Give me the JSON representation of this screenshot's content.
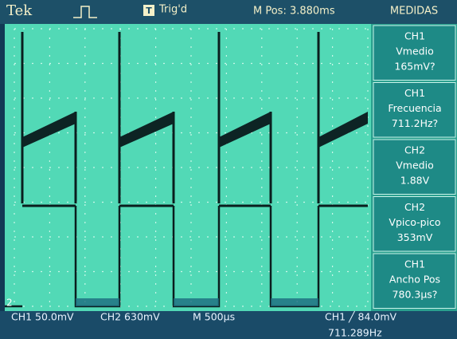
{
  "header": {
    "brand": "Tek",
    "trigger_icon": "T",
    "trigger_status": "Trig'd",
    "position": "M Pos: 3.880ms",
    "menu_title": "MEDIDAS"
  },
  "measurements": [
    {
      "source": "CH1",
      "name": "Vmedio",
      "value": "165mV?"
    },
    {
      "source": "CH1",
      "name": "Frecuencia",
      "value": "711.2Hz?"
    },
    {
      "source": "CH2",
      "name": "Vmedio",
      "value": "1.88V"
    },
    {
      "source": "CH2",
      "name": "Vpico-pico",
      "value": "353mV"
    },
    {
      "source": "CH1",
      "name": "Ancho Pos",
      "value": "780.3µs?"
    }
  ],
  "markers": {
    "channel2": "2"
  },
  "footer": {
    "ch1_scale": "CH1  50.0mV",
    "ch2_scale": "CH2  630mV",
    "timebase": "M 500µs",
    "trigger": "CH1 ╱ 84.0mV",
    "trigger_frequency": "711.289Hz"
  }
}
